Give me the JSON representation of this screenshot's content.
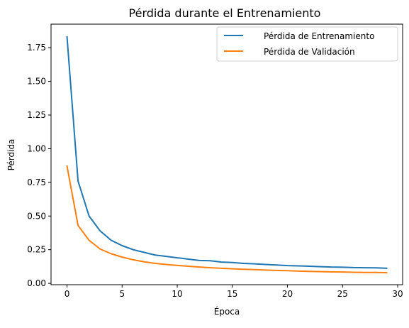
{
  "chart_data": {
    "type": "line",
    "title": "Pérdida durante el Entrenamiento",
    "xlabel": "Época",
    "ylabel": "Pérdida",
    "xlim": [
      -1.45,
      30.45
    ],
    "ylim": [
      -0.01,
      1.925
    ],
    "xticks": [
      0,
      5,
      10,
      15,
      20,
      25,
      30
    ],
    "xtick_labels": [
      "0",
      "5",
      "10",
      "15",
      "20",
      "25",
      "30"
    ],
    "yticks": [
      0.0,
      0.25,
      0.5,
      0.75,
      1.0,
      1.25,
      1.5,
      1.75
    ],
    "ytick_labels": [
      "0.00",
      "0.25",
      "0.50",
      "0.75",
      "1.00",
      "1.25",
      "1.50",
      "1.75"
    ],
    "grid": false,
    "legend_position": "top-right",
    "x": [
      0,
      1,
      2,
      3,
      4,
      5,
      6,
      7,
      8,
      9,
      10,
      11,
      12,
      13,
      14,
      15,
      16,
      17,
      18,
      19,
      20,
      21,
      22,
      23,
      24,
      25,
      26,
      27,
      28,
      29
    ],
    "series": [
      {
        "name": "Pérdida de Entrenamiento",
        "color": "#1f77b4",
        "values": [
          1.83,
          0.76,
          0.5,
          0.39,
          0.32,
          0.28,
          0.25,
          0.23,
          0.21,
          0.2,
          0.19,
          0.18,
          0.17,
          0.168,
          0.158,
          0.155,
          0.148,
          0.145,
          0.14,
          0.136,
          0.132,
          0.13,
          0.127,
          0.124,
          0.121,
          0.12,
          0.117,
          0.116,
          0.115,
          0.112
        ]
      },
      {
        "name": "Pérdida de Validación",
        "color": "#ff7f0e",
        "values": [
          0.87,
          0.43,
          0.32,
          0.255,
          0.22,
          0.195,
          0.175,
          0.16,
          0.148,
          0.14,
          0.133,
          0.127,
          0.121,
          0.116,
          0.112,
          0.108,
          0.105,
          0.102,
          0.099,
          0.096,
          0.094,
          0.091,
          0.089,
          0.087,
          0.085,
          0.084,
          0.082,
          0.081,
          0.081,
          0.079
        ]
      }
    ]
  }
}
